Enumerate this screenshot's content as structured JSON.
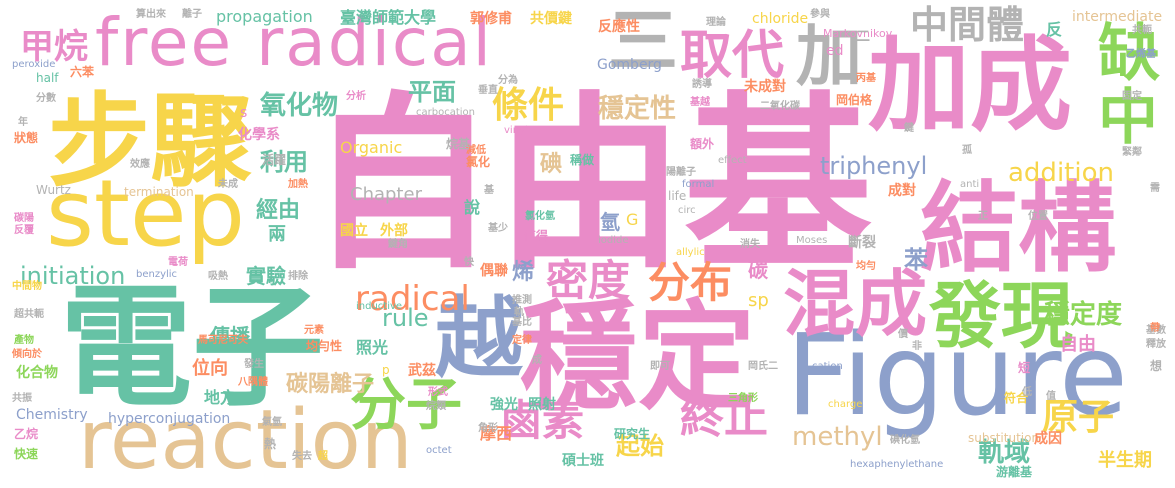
{
  "palette": {
    "pink": "#e98bc8",
    "yellow": "#f7d54a",
    "green": "#8dd65a",
    "teal": "#66c2a5",
    "periwinkle": "#8da0cb",
    "orange": "#fc8d62",
    "sand": "#e5c494",
    "gray": "#b3b3b3"
  },
  "words": [
    {
      "id": "w1",
      "text": "自由基",
      "color": "#e98bc8"
    },
    {
      "id": "w2",
      "text": "free radical",
      "color": "#e98bc8"
    },
    {
      "id": "w3",
      "text": "電子",
      "color": "#66c2a5"
    },
    {
      "id": "w4",
      "text": "穩定",
      "color": "#e98bc8"
    },
    {
      "id": "w5",
      "text": "Figure",
      "color": "#8da0cb"
    },
    {
      "id": "w6",
      "text": "加成",
      "color": "#e98bc8"
    },
    {
      "id": "w7",
      "text": "步驟",
      "color": "#f7d54a"
    },
    {
      "id": "w8",
      "text": "結構",
      "color": "#e98bc8"
    },
    {
      "id": "w9",
      "text": "step",
      "color": "#f7d54a"
    },
    {
      "id": "w10",
      "text": "reaction",
      "color": "#e5c494"
    },
    {
      "id": "w11",
      "text": "混成",
      "color": "#e98bc8"
    },
    {
      "id": "w12",
      "text": "發現",
      "color": "#8dd65a"
    },
    {
      "id": "w13",
      "text": "越",
      "color": "#8da0cb"
    },
    {
      "id": "w14",
      "text": "分子",
      "color": "#8dd65a"
    },
    {
      "id": "w15",
      "text": "取代",
      "color": "#e98bc8"
    },
    {
      "id": "w16",
      "text": "加",
      "color": "#b3b3b3"
    },
    {
      "id": "w17",
      "text": "三",
      "color": "#b3b3b3"
    },
    {
      "id": "w18",
      "text": "缺",
      "color": "#8dd65a"
    },
    {
      "id": "w19",
      "text": "中",
      "color": "#8dd65a"
    },
    {
      "id": "w20",
      "text": "中間體",
      "color": "#b3b3b3"
    },
    {
      "id": "w21",
      "text": "甲烷",
      "color": "#e98bc8"
    },
    {
      "id": "w22",
      "text": "密度",
      "color": "#e98bc8"
    },
    {
      "id": "w23",
      "text": "分布",
      "color": "#fc8d62"
    },
    {
      "id": "w24",
      "text": "radical",
      "color": "#fc8d62"
    },
    {
      "id": "w25",
      "text": "鹵素",
      "color": "#e98bc8"
    },
    {
      "id": "w26",
      "text": "終止",
      "color": "#e98bc8"
    },
    {
      "id": "w27",
      "text": "條件",
      "color": "#f7d54a"
    },
    {
      "id": "w28",
      "text": "原子",
      "color": "#f7d54a"
    },
    {
      "id": "w29",
      "text": "穩定度",
      "color": "#8dd65a"
    },
    {
      "id": "w30",
      "text": "initiation",
      "color": "#66c2a5"
    },
    {
      "id": "w31",
      "text": "addition",
      "color": "#f7d54a"
    },
    {
      "id": "w32",
      "text": "triphenyl",
      "color": "#8da0cb"
    },
    {
      "id": "w33",
      "text": "Chapter",
      "color": "#b3b3b3"
    },
    {
      "id": "w34",
      "text": "Organic",
      "color": "#f7d54a"
    },
    {
      "id": "w35",
      "text": "氧化物",
      "color": "#66c2a5"
    },
    {
      "id": "w36",
      "text": "平面",
      "color": "#66c2a5"
    },
    {
      "id": "w37",
      "text": "穩定性",
      "color": "#e5c494"
    },
    {
      "id": "w38",
      "text": "利用",
      "color": "#66c2a5"
    },
    {
      "id": "w39",
      "text": "碳陽離子",
      "color": "#e5c494"
    },
    {
      "id": "w40",
      "text": "methyl",
      "color": "#e5c494"
    },
    {
      "id": "w41",
      "text": "軌域",
      "color": "#66c2a5"
    },
    {
      "id": "w42",
      "text": "起始",
      "color": "#f7d54a"
    },
    {
      "id": "w43",
      "text": "傳播",
      "color": "#66c2a5"
    },
    {
      "id": "w44",
      "text": "實驗",
      "color": "#66c2a5"
    },
    {
      "id": "w45",
      "text": "rule",
      "color": "#66c2a5"
    },
    {
      "id": "w46",
      "text": "propagation",
      "color": "#66c2a5"
    },
    {
      "id": "w47",
      "text": "臺灣師範大學",
      "color": "#66c2a5"
    },
    {
      "id": "w48",
      "text": "郭修甫",
      "color": "#fc8d62"
    },
    {
      "id": "w49",
      "text": "共價鍵",
      "color": "#f7d54a"
    },
    {
      "id": "w50",
      "text": "chloride",
      "color": "#f7d54a"
    },
    {
      "id": "w51",
      "text": "intermediate",
      "color": "#e5c494"
    },
    {
      "id": "w52",
      "text": "Markovnikov",
      "color": "#e98bc8"
    },
    {
      "id": "w53",
      "text": "Gomberg",
      "color": "#8da0cb"
    },
    {
      "id": "w54",
      "text": "反應性",
      "color": "#fc8d62"
    },
    {
      "id": "w55",
      "text": "未成對",
      "color": "#fc8d62"
    },
    {
      "id": "w56",
      "text": "sp",
      "color": "#f7d54a"
    },
    {
      "id": "w57",
      "text": "苯",
      "color": "#8da0cb"
    },
    {
      "id": "w58",
      "text": "經由",
      "color": "#66c2a5"
    },
    {
      "id": "w59",
      "text": "碘",
      "color": "#e5c494"
    },
    {
      "id": "w60",
      "text": "烯",
      "color": "#8da0cb"
    },
    {
      "id": "w61",
      "text": "碳",
      "color": "#e98bc8"
    },
    {
      "id": "w62",
      "text": "氫",
      "color": "#8da0cb"
    },
    {
      "id": "w63",
      "text": "G",
      "color": "#f7d54a"
    },
    {
      "id": "w64",
      "text": "termination",
      "color": "#e5c494"
    },
    {
      "id": "w65",
      "text": "Chemistry",
      "color": "#8da0cb"
    },
    {
      "id": "w66",
      "text": "hyperconjugation",
      "color": "#8da0cb"
    },
    {
      "id": "w67",
      "text": "hexaphenylethane",
      "color": "#8da0cb"
    },
    {
      "id": "w68",
      "text": "substitution",
      "color": "#e5c494"
    },
    {
      "id": "w69",
      "text": "半生期",
      "color": "#f7d54a"
    },
    {
      "id": "w70",
      "text": "成因",
      "color": "#fc8d62"
    },
    {
      "id": "w71",
      "text": "自由",
      "color": "#e98bc8"
    },
    {
      "id": "w72",
      "text": "反",
      "color": "#66c2a5"
    },
    {
      "id": "w73",
      "text": "碩士班",
      "color": "#66c2a5"
    },
    {
      "id": "w74",
      "text": "研究生",
      "color": "#66c2a5"
    },
    {
      "id": "w75",
      "text": "摩西",
      "color": "#fc8d62"
    },
    {
      "id": "w76",
      "text": "照射",
      "color": "#66c2a5"
    },
    {
      "id": "w77",
      "text": "強光",
      "color": "#66c2a5"
    },
    {
      "id": "w78",
      "text": "武茲",
      "color": "#fc8d62"
    },
    {
      "id": "w79",
      "text": "照光",
      "color": "#66c2a5"
    },
    {
      "id": "w80",
      "text": "位向",
      "color": "#fc8d62"
    },
    {
      "id": "w81",
      "text": "地方",
      "color": "#66c2a5"
    },
    {
      "id": "w82",
      "text": "化合物",
      "color": "#8dd65a"
    },
    {
      "id": "w83",
      "text": "國立",
      "color": "#f7d54a"
    },
    {
      "id": "w84",
      "text": "外部",
      "color": "#f7d54a"
    },
    {
      "id": "w85",
      "text": "稱做",
      "color": "#66c2a5"
    },
    {
      "id": "w86",
      "text": "說",
      "color": "#66c2a5"
    },
    {
      "id": "w87",
      "text": "偶聯",
      "color": "#fc8d62"
    },
    {
      "id": "w88",
      "text": "斷裂",
      "color": "#b3b3b3"
    },
    {
      "id": "w89",
      "text": "成對",
      "color": "#fc8d62"
    },
    {
      "id": "w90",
      "text": "氯化",
      "color": "#fc8d62"
    },
    {
      "id": "w91",
      "text": "half",
      "color": "#66c2a5"
    },
    {
      "id": "w92",
      "text": "ed",
      "color": "#e98bc8"
    },
    {
      "id": "w93",
      "text": "Wurtz",
      "color": "#b3b3b3"
    },
    {
      "id": "w94",
      "text": "vinyl",
      "color": "#e98bc8"
    },
    {
      "id": "w95",
      "text": "carbocation",
      "color": "#b3b3b3"
    },
    {
      "id": "w96",
      "text": "formal",
      "color": "#8da0cb"
    },
    {
      "id": "w97",
      "text": "effect",
      "color": "#b3b3b3"
    },
    {
      "id": "w98",
      "text": "life",
      "color": "#b3b3b3"
    },
    {
      "id": "w99",
      "text": "circ",
      "color": "#b3b3b3"
    },
    {
      "id": "w100",
      "text": "iodide",
      "color": "#b3b3b3"
    },
    {
      "id": "w101",
      "text": "allylic",
      "color": "#f7d54a"
    },
    {
      "id": "w102",
      "text": "Moses",
      "color": "#b3b3b3"
    },
    {
      "id": "w103",
      "text": "inductive",
      "color": "#66c2a5"
    },
    {
      "id": "w104",
      "text": "benzylic",
      "color": "#8da0cb"
    },
    {
      "id": "w105",
      "text": "cation",
      "color": "#8da0cb"
    },
    {
      "id": "w106",
      "text": "charge",
      "color": "#f7d54a"
    },
    {
      "id": "w107",
      "text": "octet",
      "color": "#8da0cb"
    },
    {
      "id": "w108",
      "text": "peroxide",
      "color": "#8da0cb"
    },
    {
      "id": "w109",
      "text": "anti",
      "color": "#b3b3b3"
    },
    {
      "id": "w110",
      "text": "化學系",
      "color": "#e98bc8"
    },
    {
      "id": "w111",
      "text": "活躍",
      "color": "#b3b3b3"
    },
    {
      "id": "w112",
      "text": "減低",
      "color": "#fc8d62"
    },
    {
      "id": "w113",
      "text": "烷基",
      "color": "#b3b3b3"
    },
    {
      "id": "w114",
      "text": "氯化氫",
      "color": "#66c2a5"
    },
    {
      "id": "w115",
      "text": "值得",
      "color": "#e98bc8"
    },
    {
      "id": "w116",
      "text": "鍵角",
      "color": "#b3b3b3"
    },
    {
      "id": "w117",
      "text": "基少",
      "color": "#b3b3b3"
    },
    {
      "id": "w118",
      "text": "推測",
      "color": "#b3b3b3"
    },
    {
      "id": "w119",
      "text": "均勻性",
      "color": "#fc8d62"
    },
    {
      "id": "w120",
      "text": "馬可尼可夫",
      "color": "#fc8d62"
    },
    {
      "id": "w121",
      "text": "八隅體",
      "color": "#fc8d62"
    },
    {
      "id": "w122",
      "text": "形式",
      "color": "#e98bc8"
    },
    {
      "id": "w123",
      "text": "烷類",
      "color": "#b3b3b3"
    },
    {
      "id": "w124",
      "text": "角形",
      "color": "#b3b3b3"
    },
    {
      "id": "w125",
      "text": "失去",
      "color": "#b3b3b3"
    },
    {
      "id": "w126",
      "text": "三角形",
      "color": "#8dd65a"
    },
    {
      "id": "w127",
      "text": "岡氏二",
      "color": "#b3b3b3"
    },
    {
      "id": "w128",
      "text": "碘化氫",
      "color": "#b3b3b3"
    },
    {
      "id": "w129",
      "text": "游離基",
      "color": "#66c2a5"
    },
    {
      "id": "w130",
      "text": "消失",
      "color": "#b3b3b3"
    },
    {
      "id": "w131",
      "text": "陽離子",
      "color": "#b3b3b3"
    },
    {
      "id": "w132",
      "text": "二氧化碳",
      "color": "#b3b3b3"
    },
    {
      "id": "w133",
      "text": "岡伯格",
      "color": "#fc8d62"
    },
    {
      "id": "w134",
      "text": "丙基",
      "color": "#fc8d62"
    },
    {
      "id": "w135",
      "text": "乙烯基",
      "color": "#8da0cb"
    },
    {
      "id": "w136",
      "text": "共軛",
      "color": "#b3b3b3"
    },
    {
      "id": "w137",
      "text": "固定",
      "color": "#b3b3b3"
    },
    {
      "id": "w138",
      "text": "緊鄰",
      "color": "#b3b3b3"
    },
    {
      "id": "w139",
      "text": "位置",
      "color": "#b3b3b3"
    },
    {
      "id": "w140",
      "text": "均勻",
      "color": "#fc8d62"
    },
    {
      "id": "w141",
      "text": "基數",
      "color": "#b3b3b3"
    },
    {
      "id": "w142",
      "text": "釋放",
      "color": "#b3b3b3"
    },
    {
      "id": "w143",
      "text": "符合",
      "color": "#f7d54a"
    },
    {
      "id": "w144",
      "text": "碳陽",
      "color": "#e98bc8"
    },
    {
      "id": "w145",
      "text": "反覆",
      "color": "#e98bc8"
    },
    {
      "id": "w146",
      "text": "中間物",
      "color": "#f7d54a"
    },
    {
      "id": "w147",
      "text": "超共軛",
      "color": "#b3b3b3"
    },
    {
      "id": "w148",
      "text": "產物",
      "color": "#8dd65a"
    },
    {
      "id": "w149",
      "text": "傾向於",
      "color": "#fc8d62"
    },
    {
      "id": "w150",
      "text": "共振",
      "color": "#b3b3b3"
    },
    {
      "id": "w151",
      "text": "乙烷",
      "color": "#e98bc8"
    },
    {
      "id": "w152",
      "text": "快速",
      "color": "#8dd65a"
    },
    {
      "id": "w153",
      "text": "年",
      "color": "#b3b3b3"
    },
    {
      "id": "w154",
      "text": "狀態",
      "color": "#fc8d62"
    },
    {
      "id": "w155",
      "text": "分數",
      "color": "#b3b3b3"
    },
    {
      "id": "w156",
      "text": "六苯",
      "color": "#fc8d62"
    },
    {
      "id": "w157",
      "text": "分析",
      "color": "#e98bc8"
    },
    {
      "id": "w158",
      "text": "算出來",
      "color": "#b3b3b3"
    },
    {
      "id": "w159",
      "text": "離子",
      "color": "#b3b3b3"
    },
    {
      "id": "w160",
      "text": "理論",
      "color": "#b3b3b3"
    },
    {
      "id": "w161",
      "text": "參與",
      "color": "#b3b3b3"
    },
    {
      "id": "w162",
      "text": "誘導",
      "color": "#b3b3b3"
    },
    {
      "id": "w163",
      "text": "基越",
      "color": "#e98bc8"
    },
    {
      "id": "w164",
      "text": "額外",
      "color": "#e98bc8"
    },
    {
      "id": "w165",
      "text": "吸熱",
      "color": "#b3b3b3"
    },
    {
      "id": "w166",
      "text": "電荷",
      "color": "#e98bc8"
    },
    {
      "id": "w167",
      "text": "排除",
      "color": "#b3b3b3"
    },
    {
      "id": "w168",
      "text": "未成",
      "color": "#b3b3b3"
    },
    {
      "id": "w169",
      "text": "加熱",
      "color": "#fc8d62"
    },
    {
      "id": "w170",
      "text": "發生",
      "color": "#b3b3b3"
    },
    {
      "id": "w171",
      "text": "氣氫",
      "color": "#b3b3b3"
    },
    {
      "id": "w172",
      "text": "熱",
      "color": "#b3b3b3"
    },
    {
      "id": "w173",
      "text": "超",
      "color": "#f7d54a"
    },
    {
      "id": "w174",
      "text": "元素",
      "color": "#fc8d62"
    },
    {
      "id": "w175",
      "text": "基比",
      "color": "#b3b3b3"
    },
    {
      "id": "w176",
      "text": "定律",
      "color": "#fc8d62"
    },
    {
      "id": "w177",
      "text": "即可",
      "color": "#b3b3b3"
    },
    {
      "id": "w178",
      "text": "短",
      "color": "#e98bc8"
    },
    {
      "id": "w179",
      "text": "低",
      "color": "#b3b3b3"
    },
    {
      "id": "w180",
      "text": "值",
      "color": "#b3b3b3"
    },
    {
      "id": "w181",
      "text": "想",
      "color": "#b3b3b3"
    },
    {
      "id": "w182",
      "text": "需",
      "color": "#b3b3b3"
    },
    {
      "id": "w183",
      "text": "帶",
      "color": "#fc8d62"
    },
    {
      "id": "w184",
      "text": "孤",
      "color": "#b3b3b3"
    },
    {
      "id": "w185",
      "text": "鍵",
      "color": "#b3b3b3"
    },
    {
      "id": "w186",
      "text": "正",
      "color": "#b3b3b3"
    },
    {
      "id": "w187",
      "text": "基",
      "color": "#b3b3b3"
    },
    {
      "id": "w188",
      "text": "快",
      "color": "#b3b3b3"
    },
    {
      "id": "w189",
      "text": "價",
      "color": "#b3b3b3"
    },
    {
      "id": "w190",
      "text": "非",
      "color": "#b3b3b3"
    },
    {
      "id": "w191",
      "text": "分為",
      "color": "#b3b3b3"
    },
    {
      "id": "w192",
      "text": "成",
      "color": "#b3b3b3"
    },
    {
      "id": "w193",
      "text": "s",
      "color": "#e98bc8"
    },
    {
      "id": "w194",
      "text": "p",
      "color": "#f7d54a"
    },
    {
      "id": "w195",
      "text": "二",
      "color": "#b3b3b3"
    },
    {
      "id": "w196",
      "text": "兩",
      "color": "#66c2a5"
    },
    {
      "id": "w197",
      "text": "垂直",
      "color": "#b3b3b3"
    },
    {
      "id": "w198",
      "text": "效應",
      "color": "#b3b3b3"
    },
    {
      "id": "w199",
      "text": "軌",
      "color": "#b3b3b3"
    }
  ]
}
